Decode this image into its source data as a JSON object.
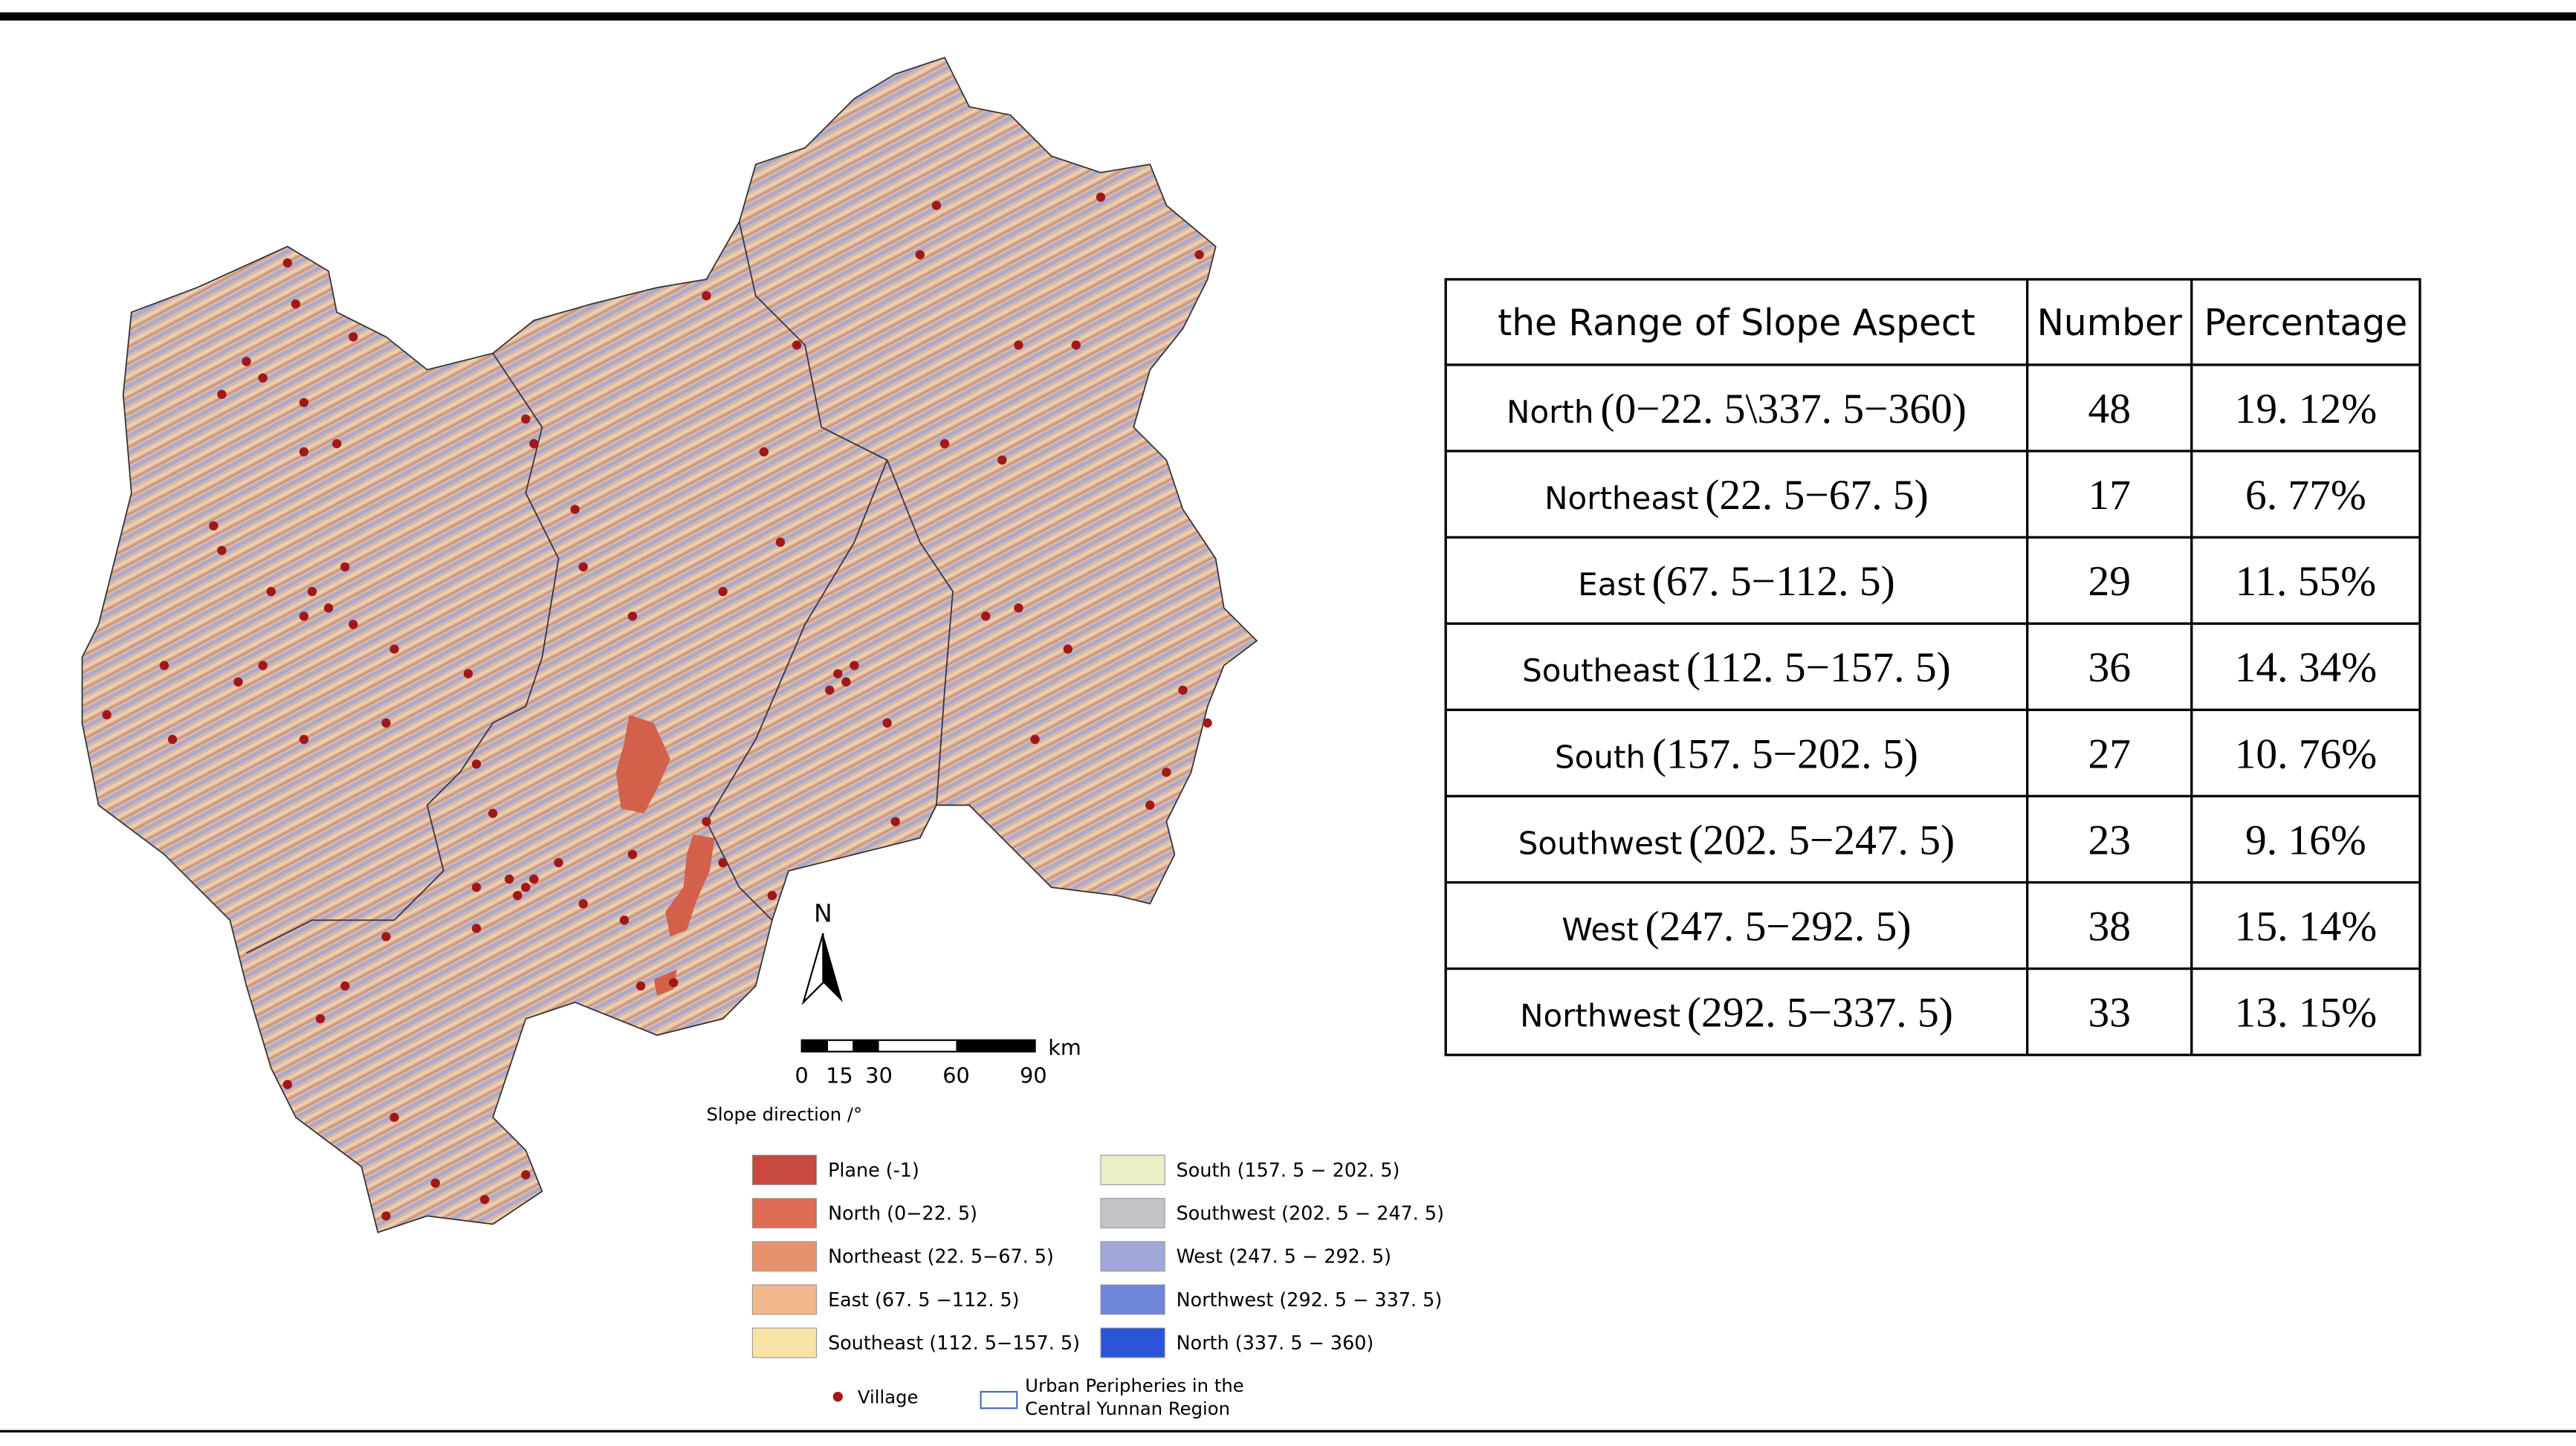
{
  "map": {
    "north_label": "N",
    "scale_labels": [
      "0",
      "15",
      "30",
      "60",
      "90"
    ],
    "scale_unit": "km",
    "legend_title": "Slope direction /°",
    "legend_items": [
      {
        "label": "Plane  (-1)",
        "color": "#c8473f"
      },
      {
        "label": "North  (0−22. 5)",
        "color": "#de6b54"
      },
      {
        "label": "Northeast (22. 5−67. 5)",
        "color": "#e8926c"
      },
      {
        "label": "East (67. 5 −112. 5)",
        "color": "#f0b98c"
      },
      {
        "label": "Southeast (112. 5−157. 5)",
        "color": "#f7e3a6"
      },
      {
        "label": "South  (157. 5 − 202. 5)",
        "color": "#ededc6"
      },
      {
        "label": "Southwest (202. 5 − 247. 5)",
        "color": "#c4c4c8"
      },
      {
        "label": "West  (247. 5 − 292. 5)",
        "color": "#a0a8d8"
      },
      {
        "label": "Northwest (292. 5 − 337. 5)",
        "color": "#6f85d8"
      },
      {
        "label": "North  (337. 5 − 360)",
        "color": "#2a55d8"
      }
    ],
    "village_label": "Village",
    "boundary_label": [
      "Urban Peripheries in the",
      "Central Yunnan Region"
    ]
  },
  "table": {
    "headers": [
      "the Range of Slope Aspect",
      "Number",
      "Percentage"
    ],
    "rows": [
      {
        "aspect": "North",
        "range": "(0−22. 5\\337. 5−360)",
        "number": "48",
        "percentage": "19. 12%"
      },
      {
        "aspect": "Northeast",
        "range": "(22. 5−67. 5)",
        "number": "17",
        "percentage": "6. 77%"
      },
      {
        "aspect": "East",
        "range": "(67. 5−112. 5)",
        "number": "29",
        "percentage": "11. 55%"
      },
      {
        "aspect": "Southeast",
        "range": "(112. 5−157. 5)",
        "number": "36",
        "percentage": "14. 34%"
      },
      {
        "aspect": "South",
        "range": "(157. 5−202. 5)",
        "number": "27",
        "percentage": "10. 76%"
      },
      {
        "aspect": "Southwest",
        "range": "(202. 5−247. 5)",
        "number": "23",
        "percentage": "9. 16%"
      },
      {
        "aspect": "West",
        "range": "(247. 5−292. 5)",
        "number": "38",
        "percentage": "15. 14%"
      },
      {
        "aspect": "Northwest",
        "range": "(292. 5−337. 5)",
        "number": "33",
        "percentage": "13. 15%"
      }
    ]
  }
}
